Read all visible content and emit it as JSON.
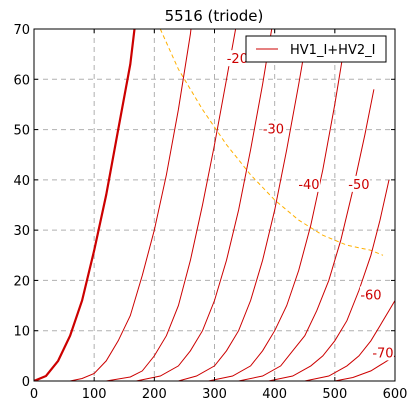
{
  "chart_data": {
    "type": "line",
    "title": "5516 (triode)",
    "xlabel": "",
    "ylabel": "",
    "xlim": [
      0,
      600
    ],
    "ylim": [
      0,
      70
    ],
    "x_ticks": [
      "0",
      "100",
      "200",
      "300",
      "400",
      "500",
      "600"
    ],
    "y_ticks": [
      "0",
      "10",
      "20",
      "30",
      "40",
      "50",
      "60",
      "70"
    ],
    "grid": true,
    "legend_position": "top-right",
    "legend": [
      "HV1_I+HV2_I"
    ],
    "colors": {
      "curve": "#cc0000",
      "load_line": "#ffb000",
      "grid": "#b0b0b0"
    },
    "series": [
      {
        "label": "",
        "bold": true,
        "points": [
          [
            0,
            0
          ],
          [
            20,
            1
          ],
          [
            40,
            4
          ],
          [
            60,
            9
          ],
          [
            80,
            16
          ],
          [
            100,
            26
          ],
          [
            120,
            37
          ],
          [
            140,
            50
          ],
          [
            160,
            63
          ],
          [
            167,
            70
          ]
        ]
      },
      {
        "label": "",
        "points": [
          [
            0,
            0
          ],
          [
            60,
            0
          ],
          [
            80,
            0.5
          ],
          [
            100,
            1.5
          ],
          [
            120,
            4
          ],
          [
            140,
            8
          ],
          [
            160,
            13
          ],
          [
            180,
            21
          ],
          [
            200,
            30
          ],
          [
            220,
            41
          ],
          [
            240,
            54
          ],
          [
            260,
            69
          ],
          [
            261,
            70
          ]
        ]
      },
      {
        "label": "",
        "points": [
          [
            0,
            0
          ],
          [
            120,
            0
          ],
          [
            160,
            0.8
          ],
          [
            180,
            2
          ],
          [
            200,
            5
          ],
          [
            220,
            9
          ],
          [
            240,
            15
          ],
          [
            260,
            24
          ],
          [
            280,
            35
          ],
          [
            300,
            47
          ],
          [
            320,
            60
          ],
          [
            335,
            70
          ]
        ]
      },
      {
        "label": "-20",
        "points": [
          [
            0,
            0
          ],
          [
            170,
            0
          ],
          [
            210,
            1
          ],
          [
            240,
            3
          ],
          [
            260,
            6
          ],
          [
            280,
            10
          ],
          [
            300,
            16
          ],
          [
            320,
            24
          ],
          [
            340,
            34
          ],
          [
            360,
            46
          ],
          [
            380,
            59
          ],
          [
            395,
            70
          ]
        ]
      },
      {
        "label": "",
        "points": [
          [
            0,
            0
          ],
          [
            240,
            0
          ],
          [
            270,
            1
          ],
          [
            300,
            3
          ],
          [
            320,
            6
          ],
          [
            340,
            10
          ],
          [
            360,
            16
          ],
          [
            380,
            24
          ],
          [
            400,
            34
          ],
          [
            420,
            46
          ],
          [
            440,
            59
          ],
          [
            450,
            66
          ]
        ]
      },
      {
        "label": "-30",
        "points": [
          [
            0,
            0
          ],
          [
            290,
            0
          ],
          [
            330,
            1
          ],
          [
            360,
            3
          ],
          [
            380,
            6
          ],
          [
            400,
            10
          ],
          [
            420,
            15
          ],
          [
            440,
            22
          ],
          [
            460,
            31
          ],
          [
            480,
            42
          ],
          [
            500,
            55
          ],
          [
            515,
            66
          ]
        ]
      },
      {
        "label": "-40",
        "points": [
          [
            0,
            0
          ],
          [
            340,
            0
          ],
          [
            380,
            1
          ],
          [
            410,
            3
          ],
          [
            430,
            6
          ],
          [
            450,
            9
          ],
          [
            470,
            14
          ],
          [
            490,
            20
          ],
          [
            510,
            28
          ],
          [
            530,
            38
          ],
          [
            550,
            49
          ],
          [
            565,
            58
          ]
        ]
      },
      {
        "label": "-50",
        "points": [
          [
            0,
            0
          ],
          [
            390,
            0
          ],
          [
            430,
            1
          ],
          [
            460,
            3
          ],
          [
            480,
            5
          ],
          [
            500,
            8
          ],
          [
            520,
            12
          ],
          [
            540,
            18
          ],
          [
            560,
            25
          ],
          [
            575,
            32
          ],
          [
            590,
            40
          ]
        ]
      },
      {
        "label": "-60",
        "points": [
          [
            0,
            0
          ],
          [
            450,
            0
          ],
          [
            490,
            1
          ],
          [
            520,
            3
          ],
          [
            540,
            5
          ],
          [
            560,
            8
          ],
          [
            575,
            11
          ],
          [
            590,
            14
          ],
          [
            600,
            16
          ]
        ]
      },
      {
        "label": "-70",
        "points": [
          [
            0,
            0
          ],
          [
            500,
            0
          ],
          [
            530,
            0.7
          ],
          [
            560,
            2
          ],
          [
            580,
            3.5
          ],
          [
            600,
            5
          ]
        ]
      }
    ],
    "load_line": [
      [
        210,
        70
      ],
      [
        240,
        62
      ],
      [
        280,
        54
      ],
      [
        320,
        47
      ],
      [
        360,
        41
      ],
      [
        400,
        36
      ],
      [
        440,
        32
      ],
      [
        480,
        29
      ],
      [
        520,
        27
      ],
      [
        560,
        26
      ],
      [
        580,
        25
      ]
    ]
  }
}
